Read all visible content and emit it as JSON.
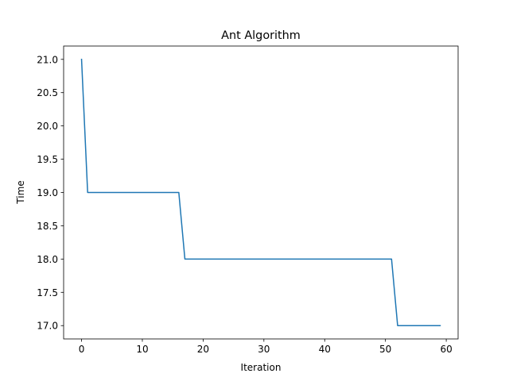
{
  "chart_data": {
    "type": "line",
    "title": "Ant Algorithm",
    "xlabel": "Iteration",
    "ylabel": "Time",
    "xlim": [
      -2.95,
      61.95
    ],
    "ylim": [
      16.8,
      21.2
    ],
    "xticks": [
      0,
      10,
      20,
      30,
      40,
      50,
      60
    ],
    "yticks": [
      17.0,
      17.5,
      18.0,
      18.5,
      19.0,
      19.5,
      20.0,
      20.5,
      21.0
    ],
    "ytick_labels": [
      "17.0",
      "17.5",
      "18.0",
      "18.5",
      "19.0",
      "19.5",
      "20.0",
      "20.5",
      "21.0"
    ],
    "grid": false,
    "series": [
      {
        "color": "#1f77b4",
        "points": [
          [
            0,
            21
          ],
          [
            1,
            19
          ],
          [
            16,
            19
          ],
          [
            17,
            18
          ],
          [
            51,
            18
          ],
          [
            52,
            17
          ],
          [
            59,
            17
          ]
        ]
      }
    ]
  }
}
